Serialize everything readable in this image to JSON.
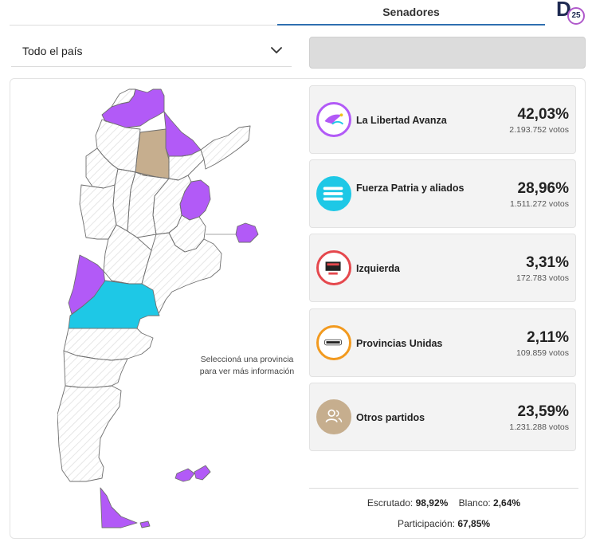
{
  "tabs": {
    "active_label": "Senadores"
  },
  "logo": {
    "letter": "D",
    "badge": "25"
  },
  "region_select": {
    "value": "Todo el país"
  },
  "map": {
    "hint": "Seleccioná una provincia para ver más información",
    "colors": {
      "lla": "#b25af7",
      "fp": "#1ec8e6",
      "other": "#c6ae8e",
      "hatch": "#dddddd"
    }
  },
  "results": [
    {
      "name": "La Libertad Avanza",
      "percent": "42,03%",
      "votes": "2.193.752 votos",
      "icon": "dove-logo-icon",
      "ring": "#b25af7"
    },
    {
      "name": "Fuerza Patria y aliados",
      "percent": "28,96%",
      "votes": "1.511.272 votos",
      "icon": "flag-stripes-logo-icon",
      "ring": "#1ec8e6"
    },
    {
      "name": "Izquierda",
      "percent": "3,31%",
      "votes": "172.783 votos",
      "icon": "frente-izquierda-logo-icon",
      "ring": "#e5484d"
    },
    {
      "name": "Provincias Unidas",
      "percent": "2,11%",
      "votes": "109.859 votos",
      "icon": "provincias-unidas-logo-icon",
      "ring": "#f29a1f"
    },
    {
      "name": "Otros partidos",
      "percent": "23,59%",
      "votes": "1.231.288 votos",
      "icon": "people-icon",
      "ring": "#c6ae8e"
    }
  ],
  "stats": {
    "escrutado_label": "Escrutado:",
    "escrutado_value": "98,92%",
    "blanco_label": "Blanco:",
    "blanco_value": "2,64%",
    "participacion_label": "Participación:",
    "participacion_value": "67,85%"
  }
}
